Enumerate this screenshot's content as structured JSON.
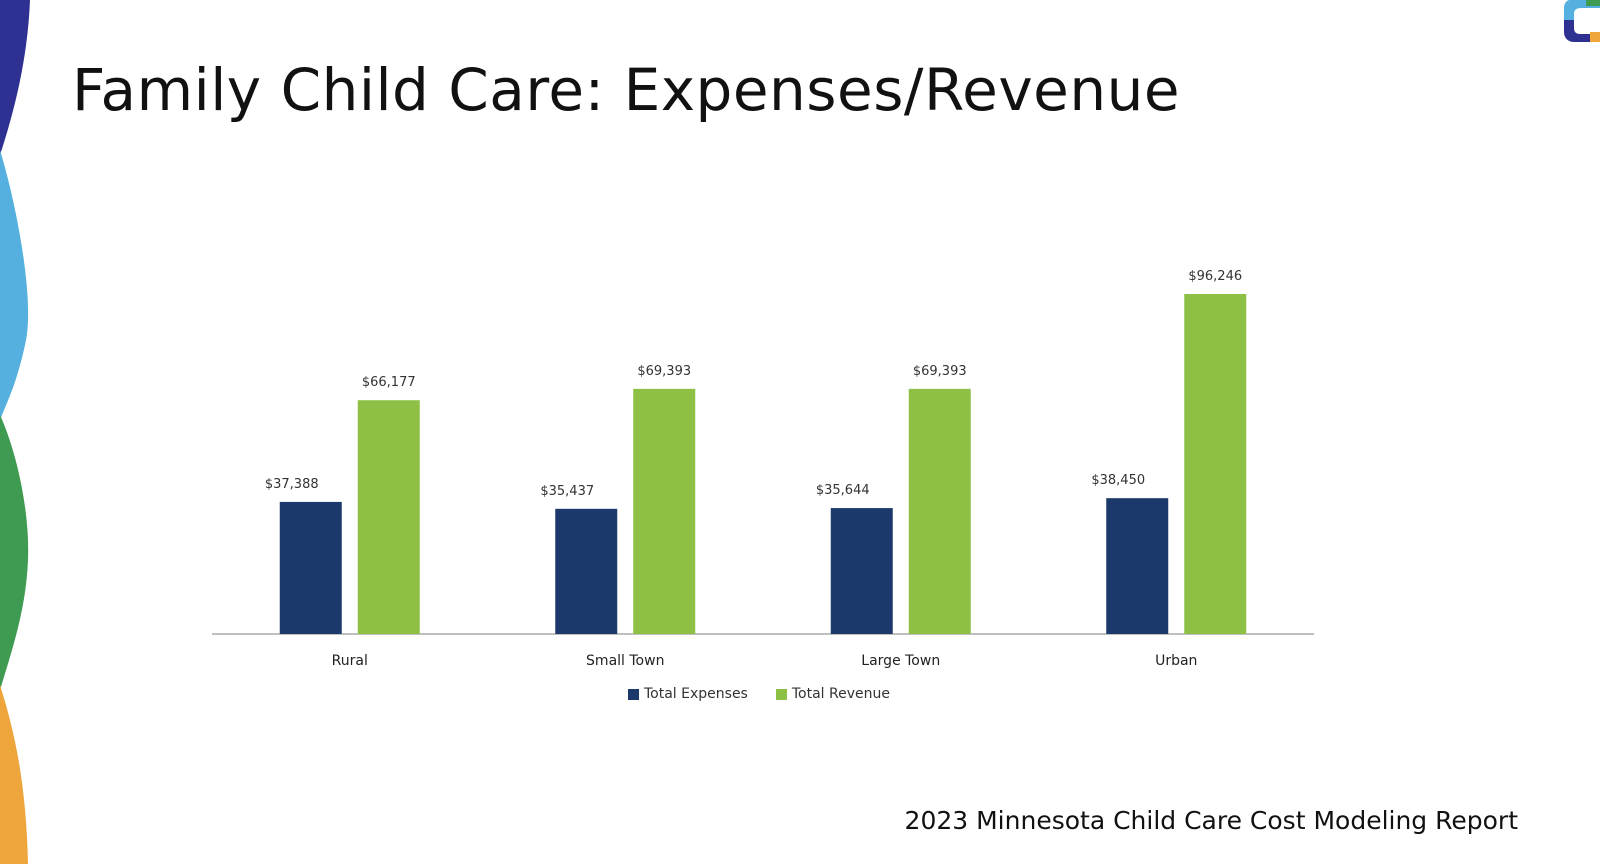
{
  "slide": {
    "title": "Family Child Care: Expenses/Revenue",
    "footer": "2023 Minnesota Child Care Cost Modeling Report"
  },
  "colors": {
    "expenses": "#1b3a6b",
    "revenue": "#8dc045",
    "axis": "#bfbfbf",
    "wave_navy": "#2e3191",
    "wave_lightblue": "#55b0e0",
    "wave_green": "#3f9a52",
    "wave_orange": "#eea53c"
  },
  "chart_data": {
    "type": "bar",
    "title": "",
    "xlabel": "",
    "ylabel": "",
    "ylim": [
      0,
      96246
    ],
    "grid": false,
    "legend_position": "bottom-center",
    "categories": [
      "Rural",
      "Small Town",
      "Large Town",
      "Urban"
    ],
    "series": [
      {
        "name": "Total Expenses",
        "values": [
          37388,
          35437,
          35644,
          38450
        ],
        "labels": [
          "$37,388",
          "$35,437",
          "$35,644",
          "$38,450"
        ]
      },
      {
        "name": "Total Revenue",
        "values": [
          66177,
          69393,
          69393,
          96246
        ],
        "labels": [
          "$66,177",
          "$69,393",
          "$69,393",
          "$96,246"
        ]
      }
    ]
  }
}
